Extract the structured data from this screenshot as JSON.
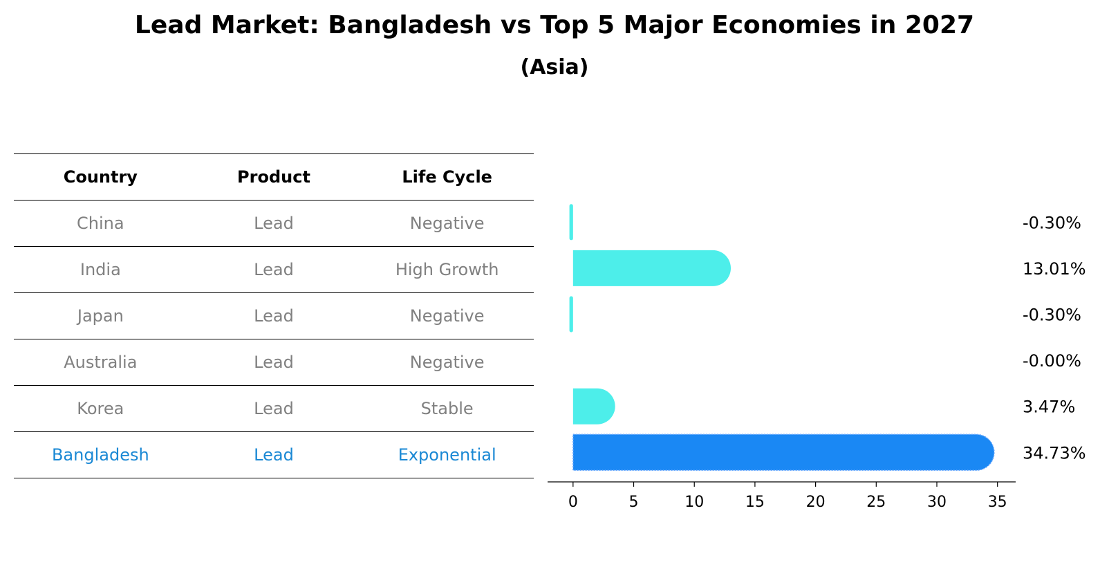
{
  "title": "Lead Market: Bangladesh vs Top 5 Major Economies in 2027",
  "subtitle": "(Asia)",
  "table": {
    "headers": [
      "Country",
      "Product",
      "Life Cycle"
    ],
    "rows": [
      {
        "country": "China",
        "product": "Lead",
        "life_cycle": "Negative"
      },
      {
        "country": "India",
        "product": "Lead",
        "life_cycle": "High Growth"
      },
      {
        "country": "Japan",
        "product": "Lead",
        "life_cycle": "Negative"
      },
      {
        "country": "Australia",
        "product": "Lead",
        "life_cycle": "Negative"
      },
      {
        "country": "Korea",
        "product": "Lead",
        "life_cycle": "Stable"
      },
      {
        "country": "Bangladesh",
        "product": "Lead",
        "life_cycle": "Exponential"
      }
    ]
  },
  "colors": {
    "bar": "#4deeea",
    "highlight_bar": "#1a88f4",
    "highlight_text": "#1a88d4",
    "muted_text": "#808080"
  },
  "chart_data": {
    "type": "bar",
    "orientation": "horizontal",
    "categories": [
      "China",
      "India",
      "Japan",
      "Australia",
      "Korea",
      "Bangladesh"
    ],
    "values": [
      -0.3,
      13.01,
      -0.3,
      -0.0,
      3.47,
      34.73
    ],
    "value_labels": [
      "-0.30%",
      "13.01%",
      "-0.30%",
      "-0.00%",
      "3.47%",
      "34.73%"
    ],
    "highlight": "Bangladesh",
    "xlim": [
      -2.1,
      36.5
    ],
    "xticks": [
      0,
      5,
      10,
      15,
      20,
      25,
      30,
      35
    ],
    "xlabel": "",
    "ylabel": ""
  }
}
